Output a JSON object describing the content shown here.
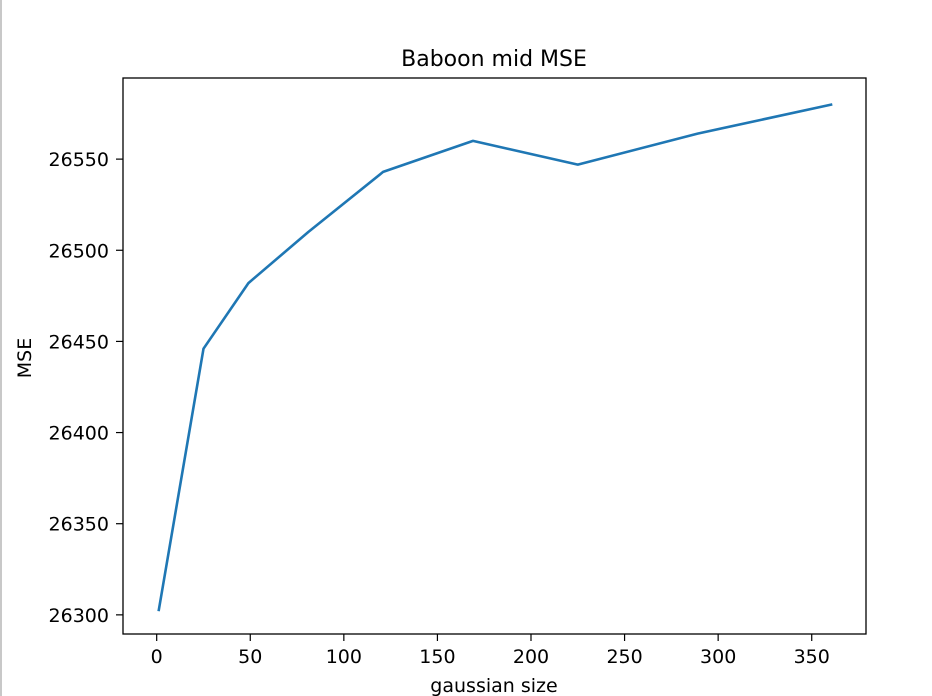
{
  "chart_data": {
    "type": "line",
    "title": "Baboon mid MSE",
    "xlabel": "gaussian size",
    "ylabel": "MSE",
    "xlim": [
      -18,
      379
    ],
    "ylim": [
      26289.5,
      26594.5
    ],
    "x_ticks": [
      0,
      50,
      100,
      150,
      200,
      250,
      300,
      350
    ],
    "y_ticks": [
      26300,
      26350,
      26400,
      26450,
      26500,
      26550
    ],
    "grid": false,
    "series": [
      {
        "color": "#1f77b4",
        "x": [
          1,
          25,
          49,
          81,
          121,
          169,
          225,
          289,
          361
        ],
        "y": [
          26302,
          26446,
          26482,
          26510,
          26543,
          26560,
          26547,
          26564,
          26580
        ]
      }
    ]
  }
}
